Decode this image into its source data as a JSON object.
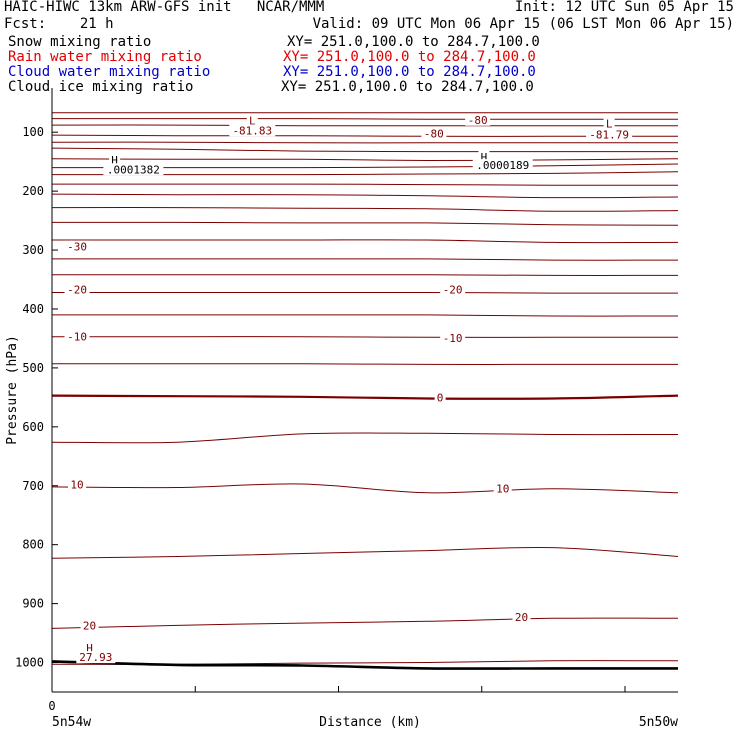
{
  "header": {
    "title": "HAIC-HIWC 13km ARW-GFS init   NCAR/MMM",
    "init": "Init: 12 UTC Sun 05 Apr 15",
    "fcst": "Fcst:    21 h",
    "valid": "Valid: 09 UTC Mon 06 Apr 15 (06 LST Mon 06 Apr 15)"
  },
  "legend": [
    {
      "name": "Snow mixing ratio",
      "xy": "XY= 251.0,100.0 to 284.7,100.0",
      "color": "#000000"
    },
    {
      "name": "Rain water mixing ratio",
      "xy": "XY= 251.0,100.0 to 284.7,100.0",
      "color": "#e00000"
    },
    {
      "name": "Cloud water mixing ratio",
      "xy": "XY= 251.0,100.0 to 284.7,100.0",
      "color": "#0000c8"
    },
    {
      "name": "Cloud ice mixing ratio",
      "xy": "XY= 251.0,100.0 to 284.7,100.0",
      "color": "#000000"
    }
  ],
  "chart_data": {
    "type": "line",
    "ylabel": "Pressure (hPa)",
    "xlabel": "Distance (km)",
    "ylim": [
      1050,
      25
    ],
    "y_ticks": [
      100,
      200,
      300,
      400,
      500,
      600,
      700,
      800,
      900,
      1000
    ],
    "x_tick_labels": [
      "0"
    ],
    "x_end_labels": [
      "5n54w",
      "5n50w"
    ],
    "contour_color": "#7a0000",
    "ground_color": "#000000",
    "contours_hPa_at_x": [
      [
        67,
        67,
        67,
        67,
        67,
        67
      ],
      [
        77,
        77,
        77,
        78,
        78,
        78
      ],
      [
        88,
        88,
        89,
        89,
        89,
        89
      ],
      [
        105,
        106,
        106,
        107,
        107,
        107
      ],
      [
        117,
        117,
        118,
        118,
        118,
        118
      ],
      [
        127,
        129,
        132,
        133,
        133,
        133
      ],
      [
        145,
        146,
        146,
        148,
        147,
        145
      ],
      [
        160,
        160,
        160,
        159,
        157,
        154
      ],
      [
        172,
        172,
        172,
        171,
        170,
        167
      ],
      [
        188,
        188,
        188,
        189,
        190,
        190
      ],
      [
        205,
        206,
        206,
        208,
        211,
        210
      ],
      [
        228,
        228,
        229,
        230,
        234,
        233
      ],
      [
        253,
        253,
        254,
        254,
        257,
        258
      ],
      [
        283,
        283,
        283,
        283,
        287,
        287
      ],
      [
        315,
        315,
        315,
        315,
        317,
        317
      ],
      [
        342,
        342,
        342,
        342,
        343,
        343
      ],
      [
        372,
        372,
        372,
        372,
        373,
        373
      ],
      [
        410,
        410,
        410,
        410,
        412,
        412
      ],
      [
        447,
        447,
        447,
        448,
        448,
        448
      ],
      [
        493,
        493,
        493,
        494,
        494,
        494
      ],
      [
        547,
        548,
        549,
        552,
        552,
        547
      ],
      [
        626,
        626,
        612,
        611,
        613,
        613
      ],
      [
        702,
        703,
        697,
        712,
        705,
        712
      ],
      [
        823,
        820,
        815,
        810,
        805,
        820
      ],
      [
        942,
        937,
        933,
        930,
        925,
        925
      ],
      [
        1003,
        1003,
        1001,
        1000,
        997,
        997
      ]
    ],
    "contour_labels": [
      {
        "text": "L",
        "x": 0.32,
        "p": 85
      },
      {
        "text": "-81.83",
        "x": 0.32,
        "p": 102
      },
      {
        "text": "-80",
        "x": 0.68,
        "p": 84
      },
      {
        "text": "-80",
        "x": 0.61,
        "p": 107
      },
      {
        "text": "L",
        "x": 0.89,
        "p": 90
      },
      {
        "text": "-81.79",
        "x": 0.89,
        "p": 109
      },
      {
        "text": "-30",
        "x": 0.04,
        "p": 299
      },
      {
        "text": "-20",
        "x": 0.04,
        "p": 372
      },
      {
        "text": "-20",
        "x": 0.64,
        "p": 372
      },
      {
        "text": "-10",
        "x": 0.04,
        "p": 452
      },
      {
        "text": "-10",
        "x": 0.64,
        "p": 454
      },
      {
        "text": "0",
        "x": 0.62,
        "p": 555
      },
      {
        "text": "10",
        "x": 0.04,
        "p": 703
      },
      {
        "text": "10",
        "x": 0.72,
        "p": 710
      },
      {
        "text": "20",
        "x": 0.06,
        "p": 942
      },
      {
        "text": "20",
        "x": 0.75,
        "p": 928
      },
      {
        "text": "H",
        "x": 0.06,
        "p": 980
      },
      {
        "text": "27.93",
        "x": 0.07,
        "p": 996
      }
    ],
    "snow_labels": [
      {
        "text": "H",
        "x": 0.1,
        "p": 152
      },
      {
        "text": ".0001382",
        "x": 0.13,
        "p": 168
      },
      {
        "text": "H",
        "x": 0.69,
        "p": 147
      },
      {
        "text": ".0000189",
        "x": 0.72,
        "p": 161
      }
    ],
    "ground_hPa_at_x": [
      998,
      1004,
      1005,
      1010,
      1010,
      1010
    ]
  }
}
